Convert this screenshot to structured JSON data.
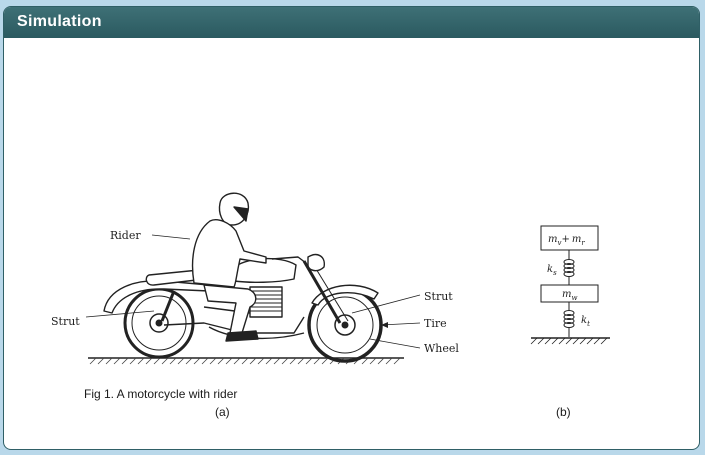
{
  "header": {
    "title": "Simulation"
  },
  "figure": {
    "caption": "Fig 1. A motorcycle with rider",
    "sub_a": "(a)",
    "sub_b": "(b)",
    "labels": {
      "rider": "Rider",
      "strut_rear": "Strut",
      "strut_front": "Strut",
      "tire": "Tire",
      "wheel": "Wheel"
    },
    "model": {
      "mass_top_a": "m",
      "mass_top_a_sub": "v",
      "mass_top_plus": "+",
      "mass_top_b": "m",
      "mass_top_b_sub": "r",
      "mass_wheel": "m",
      "mass_wheel_sub": "w",
      "spring_s": "k",
      "spring_s_sub": "s",
      "spring_t": "k",
      "spring_t_sub": "t"
    }
  }
}
